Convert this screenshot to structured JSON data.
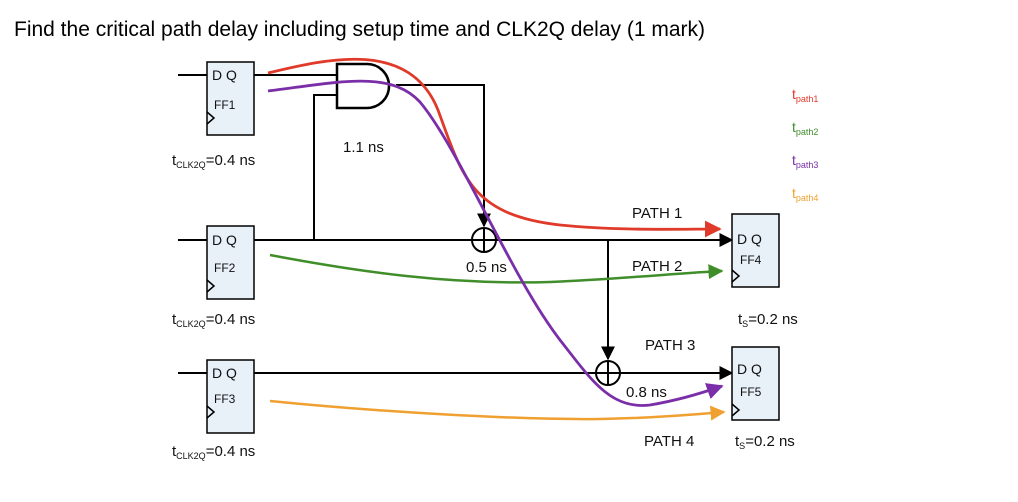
{
  "question": "Find the critical path delay including setup time and CLK2Q delay (1 mark)",
  "flip_flops": [
    {
      "id": "FF1",
      "pins": "D Q",
      "name": "FF1",
      "tclk2q_prefix": "t",
      "tclk2q_sub": "CLK2Q",
      "tclk2q_value": "=0.4 ns"
    },
    {
      "id": "FF2",
      "pins": "D Q",
      "name": "FF2",
      "tclk2q_prefix": "t",
      "tclk2q_sub": "CLK2Q",
      "tclk2q_value": "=0.4 ns"
    },
    {
      "id": "FF3",
      "pins": "D Q",
      "name": "FF3",
      "tclk2q_prefix": "t",
      "tclk2q_sub": "CLK2Q",
      "tclk2q_value": "=0.4 ns"
    },
    {
      "id": "FF4",
      "pins": "D Q",
      "name": "FF4",
      "ts_prefix": "t",
      "ts_sub": "S",
      "ts_value": "=0.2 ns"
    },
    {
      "id": "FF5",
      "pins": "D Q",
      "name": "FF5",
      "ts_prefix": "t",
      "ts_sub": "S",
      "ts_value": "=0.2 ns"
    }
  ],
  "gates": {
    "and_delay": "1.1 ns",
    "xor1_delay": "0.5 ns",
    "xor2_delay": "0.8 ns"
  },
  "path_labels": [
    "PATH 1",
    "PATH 2",
    "PATH 3",
    "PATH 4"
  ],
  "legend": [
    {
      "prefix": "t",
      "sub": "path1",
      "color": "#e03a2a"
    },
    {
      "prefix": "t",
      "sub": "path2",
      "color": "#3f8e2a"
    },
    {
      "prefix": "t",
      "sub": "path3",
      "color": "#7a2fa8"
    },
    {
      "prefix": "t",
      "sub": "path4",
      "color": "#f0a030"
    }
  ],
  "colors": {
    "path1": "#e03a2a",
    "path2": "#3f8e2a",
    "path3": "#7a2fa8",
    "path4": "#f0a030",
    "ff_fill": "#e8f0f8"
  }
}
